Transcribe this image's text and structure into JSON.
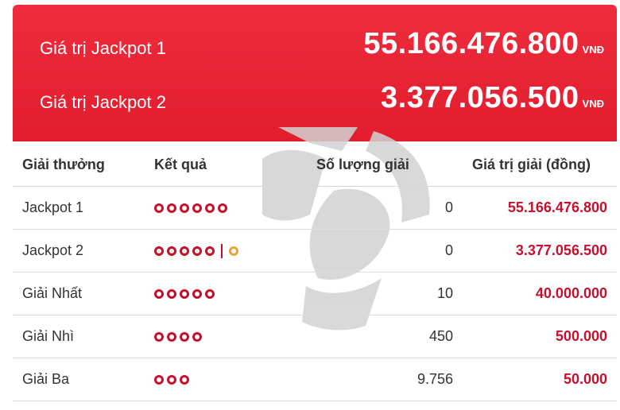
{
  "jackpots": [
    {
      "label": "Giá trị Jackpot 1",
      "amount": "55.166.476.800",
      "unit": "VNĐ"
    },
    {
      "label": "Giá trị Jackpot 2",
      "amount": "3.377.056.500",
      "unit": "VNĐ"
    }
  ],
  "table": {
    "headers": [
      "Giải thưởng",
      "Kết quả",
      "Số lượng giải",
      "Giá trị giải (đồng)"
    ],
    "rows": [
      {
        "name": "Jackpot 1",
        "balls": 6,
        "bonus": false,
        "count": "0",
        "value": "55.166.476.800"
      },
      {
        "name": "Jackpot 2",
        "balls": 5,
        "bonus": true,
        "count": "0",
        "value": "3.377.056.500"
      },
      {
        "name": "Giải Nhất",
        "balls": 5,
        "bonus": false,
        "count": "10",
        "value": "40.000.000"
      },
      {
        "name": "Giải Nhì",
        "balls": 4,
        "bonus": false,
        "count": "450",
        "value": "500.000"
      },
      {
        "name": "Giải Ba",
        "balls": 3,
        "bonus": false,
        "count": "9.756",
        "value": "50.000"
      }
    ]
  },
  "colors": {
    "banner": "#e11d2e",
    "ball": "#c8102e",
    "bonus_ball": "#e8a33c",
    "watermark": "#cfcfcf"
  }
}
